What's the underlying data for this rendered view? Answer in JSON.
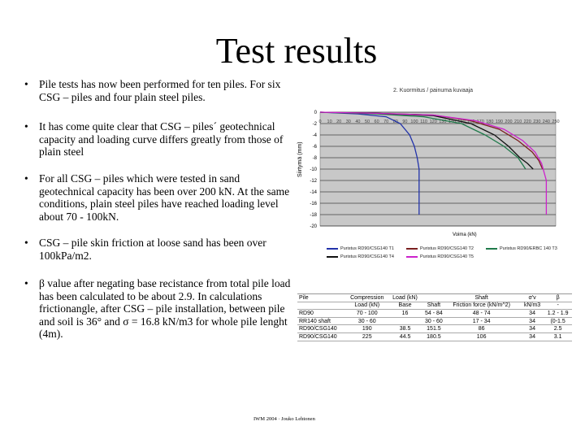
{
  "title": "Test results",
  "bullets": [
    "Pile tests has now been performed for ten piles. For six CSG – piles and four plain steel piles.",
    "It has come quite clear that CSG – piles´ geotechnical capacity and loading curve differs greatly from those of plain steel",
    "For all CSG – piles which were tested in sand geotechnical capacity has been over 200 kN. At the same conditions, plain steel piles have reached loading level about 70 - 100kN.",
    "CSG – pile skin friction at loose sand has been over 100kPa/m2.",
    "β value after negating base recistance from total pile load has been calculated to be about 2.9. In calculations frictionangle, after CSG – pile installation, between pile and soil is 36° and σ = 16.8 kN/m3 for whole pile lenght (4m)."
  ],
  "chart": {
    "title": "2. Kuormitus / painuma kuvaaja",
    "ylabel": "Siirtymä (mm)",
    "xlabel": "Voima (kN)",
    "legend": [
      {
        "label": "Puristus RD90/CSG140 T1",
        "color": "#2233aa"
      },
      {
        "label": "Puristus RD90/CSG140 T2",
        "color": "#7a1f1f"
      },
      {
        "label": "Puristus RD90/ERBC 140 T3",
        "color": "#1f7a4a"
      },
      {
        "label": "Puristus RD90/CSG140 T4",
        "color": "#111111"
      },
      {
        "label": "Puristus RD90/CSG140 T5",
        "color": "#cc22cc"
      }
    ]
  },
  "chart_data": {
    "type": "line",
    "title": "2. Kuormitus / painuma kuvaaja",
    "xlabel": "Voima (kN)",
    "ylabel": "Siirtymä (mm)",
    "xlim": [
      0,
      250
    ],
    "ylim": [
      -20,
      0
    ],
    "x_ticks": [
      0,
      10,
      20,
      30,
      40,
      50,
      60,
      70,
      80,
      90,
      100,
      110,
      120,
      130,
      140,
      150,
      160,
      170,
      180,
      190,
      200,
      210,
      220,
      230,
      240,
      250
    ],
    "y_ticks": [
      0,
      -2,
      -4,
      -6,
      -8,
      -10,
      -12,
      -14,
      -16,
      -18,
      -20
    ],
    "series": [
      {
        "name": "Puristus RD90/CSG140 T1",
        "color": "#2233aa",
        "x": [
          0,
          40,
          70,
          85,
          95,
          100,
          103,
          105,
          105,
          105
        ],
        "y": [
          0,
          -0.3,
          -0.8,
          -2,
          -4,
          -6,
          -8,
          -10,
          -14,
          -18
        ]
      },
      {
        "name": "Puristus RD90/CSG140 T2",
        "color": "#7a1f1f",
        "x": [
          0,
          60,
          120,
          160,
          190,
          210,
          225,
          232,
          236
        ],
        "y": [
          0,
          -0.2,
          -0.5,
          -1.5,
          -3,
          -5,
          -7,
          -8.5,
          -10
        ]
      },
      {
        "name": "Puristus RD90/ERBC 140 T3",
        "color": "#1f7a4a",
        "x": [
          0,
          60,
          110,
          150,
          175,
          195,
          210,
          218
        ],
        "y": [
          0,
          -0.3,
          -0.8,
          -2,
          -4,
          -6,
          -8,
          -10
        ]
      },
      {
        "name": "Puristus RD90/CSG140 T4",
        "color": "#111111",
        "x": [
          0,
          60,
          120,
          160,
          185,
          200,
          212,
          220,
          226
        ],
        "y": [
          0,
          -0.2,
          -0.6,
          -2,
          -4,
          -6,
          -8,
          -9,
          -10
        ]
      },
      {
        "name": "Puristus RD90/CSG140 T5",
        "color": "#cc22cc",
        "x": [
          0,
          60,
          120,
          165,
          195,
          215,
          228,
          235,
          240,
          240
        ],
        "y": [
          0,
          -0.2,
          -0.5,
          -1.5,
          -3,
          -5,
          -7,
          -9,
          -12,
          -18
        ]
      }
    ]
  },
  "table": {
    "rows": [
      [
        "Pile",
        "Compression",
        "Load (kN)",
        "",
        "Shaft",
        "",
        "σ'v",
        "β"
      ],
      [
        "",
        "Load (kN)",
        "Base",
        "Shaft",
        "Friction force (kN/m^2)",
        "",
        "kN/m3",
        "-"
      ],
      [
        "RD90",
        "70 - 100",
        "16",
        "54 - 84",
        "48 - 74",
        "",
        "34",
        "1.2 - 1.9"
      ],
      [
        "RR140 shaft",
        "30 - 60",
        "",
        "30 - 60",
        "17 - 34",
        "",
        "34",
        "(0-1.5"
      ],
      [
        "RD90/CSG140",
        "190",
        "38.5",
        "151.5",
        "86",
        "",
        "34",
        "2.5"
      ],
      [
        "RD90/CSG140",
        "225",
        "44.5",
        "180.5",
        "106",
        "",
        "34",
        "3.1"
      ]
    ]
  },
  "footer": "IWM 2004 · Jouko Lehtonen"
}
